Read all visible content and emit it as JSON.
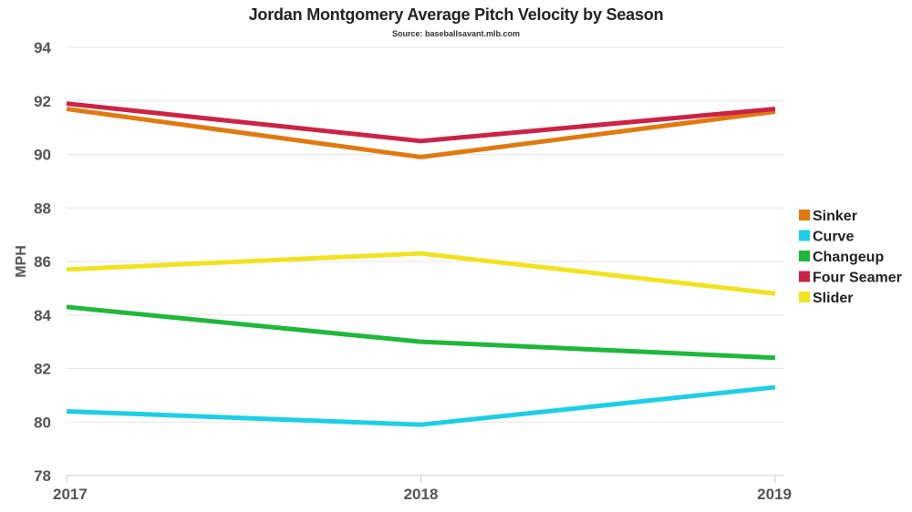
{
  "chart_data": {
    "type": "line",
    "title": "Jordan Montgomery Average Pitch Velocity by Season",
    "subtitle": "Source: baseballsavant.mlb.com",
    "xlabel": "",
    "ylabel": "MPH",
    "categories": [
      "2017",
      "2018",
      "2019"
    ],
    "ylim": [
      78,
      94
    ],
    "yticks": [
      78,
      80,
      82,
      84,
      86,
      88,
      90,
      92,
      94
    ],
    "grid": true,
    "legend_position": "right",
    "series": [
      {
        "name": "Sinker",
        "color": "#e07a10",
        "values": [
          91.7,
          89.9,
          91.6
        ]
      },
      {
        "name": "Curve",
        "color": "#1ccfe6",
        "values": [
          80.4,
          79.9,
          81.3
        ]
      },
      {
        "name": "Changeup",
        "color": "#1eb83a",
        "values": [
          84.3,
          83.0,
          82.4
        ]
      },
      {
        "name": "Four Seamer",
        "color": "#cc2244",
        "values": [
          91.9,
          90.5,
          91.7
        ]
      },
      {
        "name": "Slider",
        "color": "#f2e31f",
        "values": [
          85.7,
          86.3,
          84.8
        ]
      }
    ]
  }
}
